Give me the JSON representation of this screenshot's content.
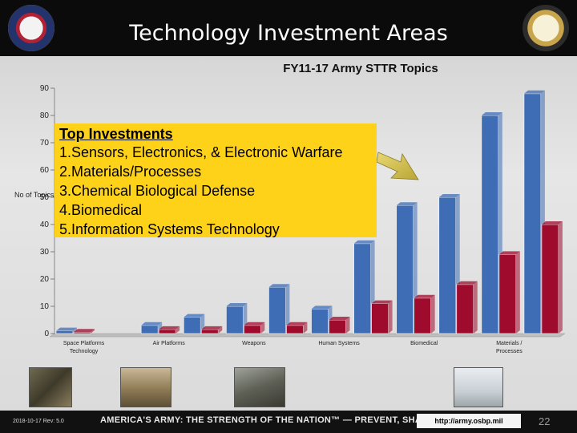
{
  "slide": {
    "title": "Technology Investment Areas",
    "date_rev": "2018-10-17 Rev: 5.0",
    "motto": "AMERICA'S ARMY: THE STRENGTH OF THE NATION™ — PREVENT, SHAPE, WIN",
    "url": "http://army.osbp.mil",
    "page": "22"
  },
  "callout": {
    "title": "Top Investments",
    "items": [
      "1.Sensors, Electronics, & Electronic Warfare",
      "2.Materials/Processes",
      "3.Chemical Biological Defense",
      "4.Biomedical",
      "5.Information Systems Technology"
    ]
  },
  "chart_data": {
    "type": "bar",
    "title": "FY11-17  Army STTR Topics",
    "ylabel": "No of Topics",
    "xlabel": "",
    "ylim": [
      0,
      90
    ],
    "yticks": [
      0,
      10,
      20,
      30,
      40,
      50,
      60,
      70,
      80,
      90
    ],
    "categories": [
      "Space Platforms Technology",
      "",
      "Air Platforms",
      "",
      "Weapons",
      "",
      "Human Systems",
      "",
      "Biomedical",
      "",
      "Materials / Processes",
      ""
    ],
    "tick_labels": [
      {
        "index": 0,
        "lines": [
          "Space Platforms",
          "Technology"
        ]
      },
      {
        "index": 2,
        "lines": [
          "Air Platforms"
        ]
      },
      {
        "index": 4,
        "lines": [
          "Weapons"
        ]
      },
      {
        "index": 6,
        "lines": [
          "Human Systems"
        ]
      },
      {
        "index": 8,
        "lines": [
          "Biomedical"
        ]
      },
      {
        "index": 10,
        "lines": [
          "Materials /",
          "Processes"
        ]
      }
    ],
    "series": [
      {
        "values": [
          1,
          0,
          3,
          6,
          10,
          17,
          9,
          33,
          47,
          50,
          80,
          88
        ],
        "color": "#3f6db5"
      },
      {
        "values": [
          0.5,
          0,
          1.5,
          1.5,
          3,
          3,
          5,
          11,
          13,
          18,
          29,
          40
        ],
        "color": "#9e0b2c"
      }
    ],
    "grid": false,
    "legend": "none"
  }
}
